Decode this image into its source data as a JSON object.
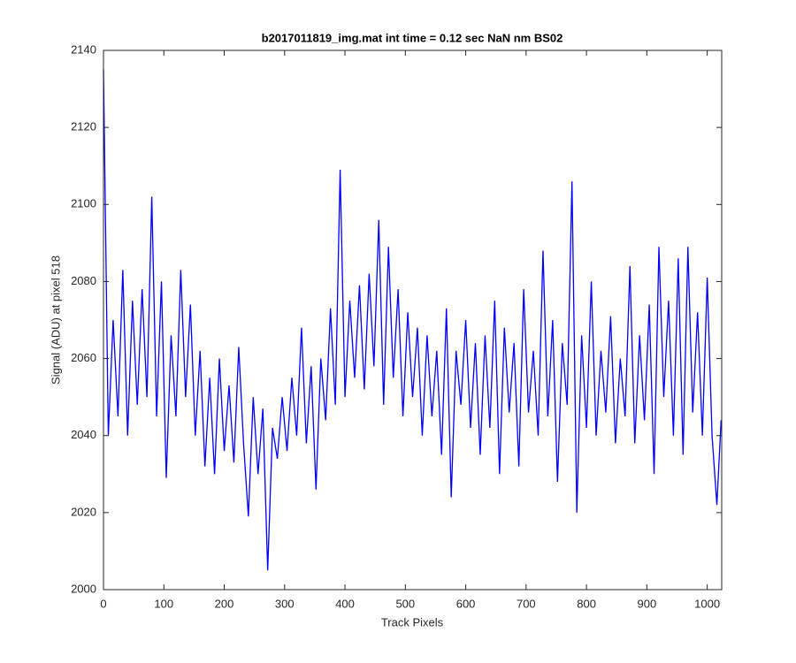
{
  "chart_data": {
    "type": "line",
    "title": "b2017011819_img.mat int time = 0.12 sec  NaN nm BS02",
    "x_label": "Track Pixels",
    "y_label": "Signal (ADU) at pixel 518",
    "xlim": [
      0,
      1024
    ],
    "ylim": [
      2000,
      2140
    ],
    "xticks": [
      0,
      100,
      200,
      300,
      400,
      500,
      600,
      700,
      800,
      900,
      1000
    ],
    "yticks": [
      2000,
      2020,
      2040,
      2060,
      2080,
      2100,
      2120,
      2140
    ],
    "grid": false,
    "x": [
      0,
      8,
      16,
      24,
      32,
      40,
      48,
      56,
      64,
      72,
      80,
      88,
      96,
      104,
      112,
      120,
      128,
      136,
      144,
      152,
      160,
      168,
      176,
      184,
      192,
      200,
      208,
      216,
      224,
      232,
      240,
      248,
      256,
      264,
      272,
      280,
      288,
      296,
      304,
      312,
      320,
      328,
      336,
      344,
      352,
      360,
      368,
      376,
      384,
      392,
      400,
      408,
      416,
      424,
      432,
      440,
      448,
      456,
      464,
      472,
      480,
      488,
      496,
      504,
      512,
      520,
      528,
      536,
      544,
      552,
      560,
      568,
      576,
      584,
      592,
      600,
      608,
      616,
      624,
      632,
      640,
      648,
      656,
      664,
      672,
      680,
      688,
      696,
      704,
      712,
      720,
      728,
      736,
      744,
      752,
      760,
      768,
      776,
      784,
      792,
      800,
      808,
      816,
      824,
      832,
      840,
      848,
      856,
      864,
      872,
      880,
      888,
      896,
      904,
      912,
      920,
      928,
      936,
      944,
      952,
      960,
      968,
      976,
      984,
      992,
      1000,
      1008,
      1016,
      1023
    ],
    "series": [
      {
        "name": "Signal",
        "color": "#0000ff",
        "values": [
          2135,
          2040,
          2070,
          2045,
          2083,
          2040,
          2075,
          2048,
          2078,
          2050,
          2102,
          2045,
          2080,
          2029,
          2066,
          2045,
          2083,
          2050,
          2074,
          2040,
          2062,
          2032,
          2055,
          2030,
          2060,
          2036,
          2053,
          2033,
          2063,
          2038,
          2019,
          2050,
          2030,
          2047,
          2005,
          2042,
          2034,
          2050,
          2036,
          2055,
          2040,
          2068,
          2038,
          2058,
          2026,
          2060,
          2044,
          2073,
          2048,
          2109,
          2050,
          2075,
          2055,
          2079,
          2052,
          2082,
          2058,
          2096,
          2048,
          2089,
          2055,
          2078,
          2045,
          2072,
          2050,
          2068,
          2040,
          2066,
          2045,
          2062,
          2035,
          2073,
          2024,
          2062,
          2048,
          2070,
          2042,
          2064,
          2035,
          2066,
          2042,
          2075,
          2030,
          2068,
          2046,
          2064,
          2032,
          2078,
          2046,
          2062,
          2040,
          2088,
          2045,
          2070,
          2028,
          2064,
          2048,
          2106,
          2020,
          2066,
          2042,
          2080,
          2040,
          2062,
          2046,
          2071,
          2038,
          2060,
          2045,
          2084,
          2038,
          2066,
          2044,
          2074,
          2030,
          2089,
          2050,
          2075,
          2040,
          2086,
          2035,
          2089,
          2046,
          2072,
          2040,
          2081,
          2040,
          2022,
          2044
        ]
      }
    ]
  }
}
